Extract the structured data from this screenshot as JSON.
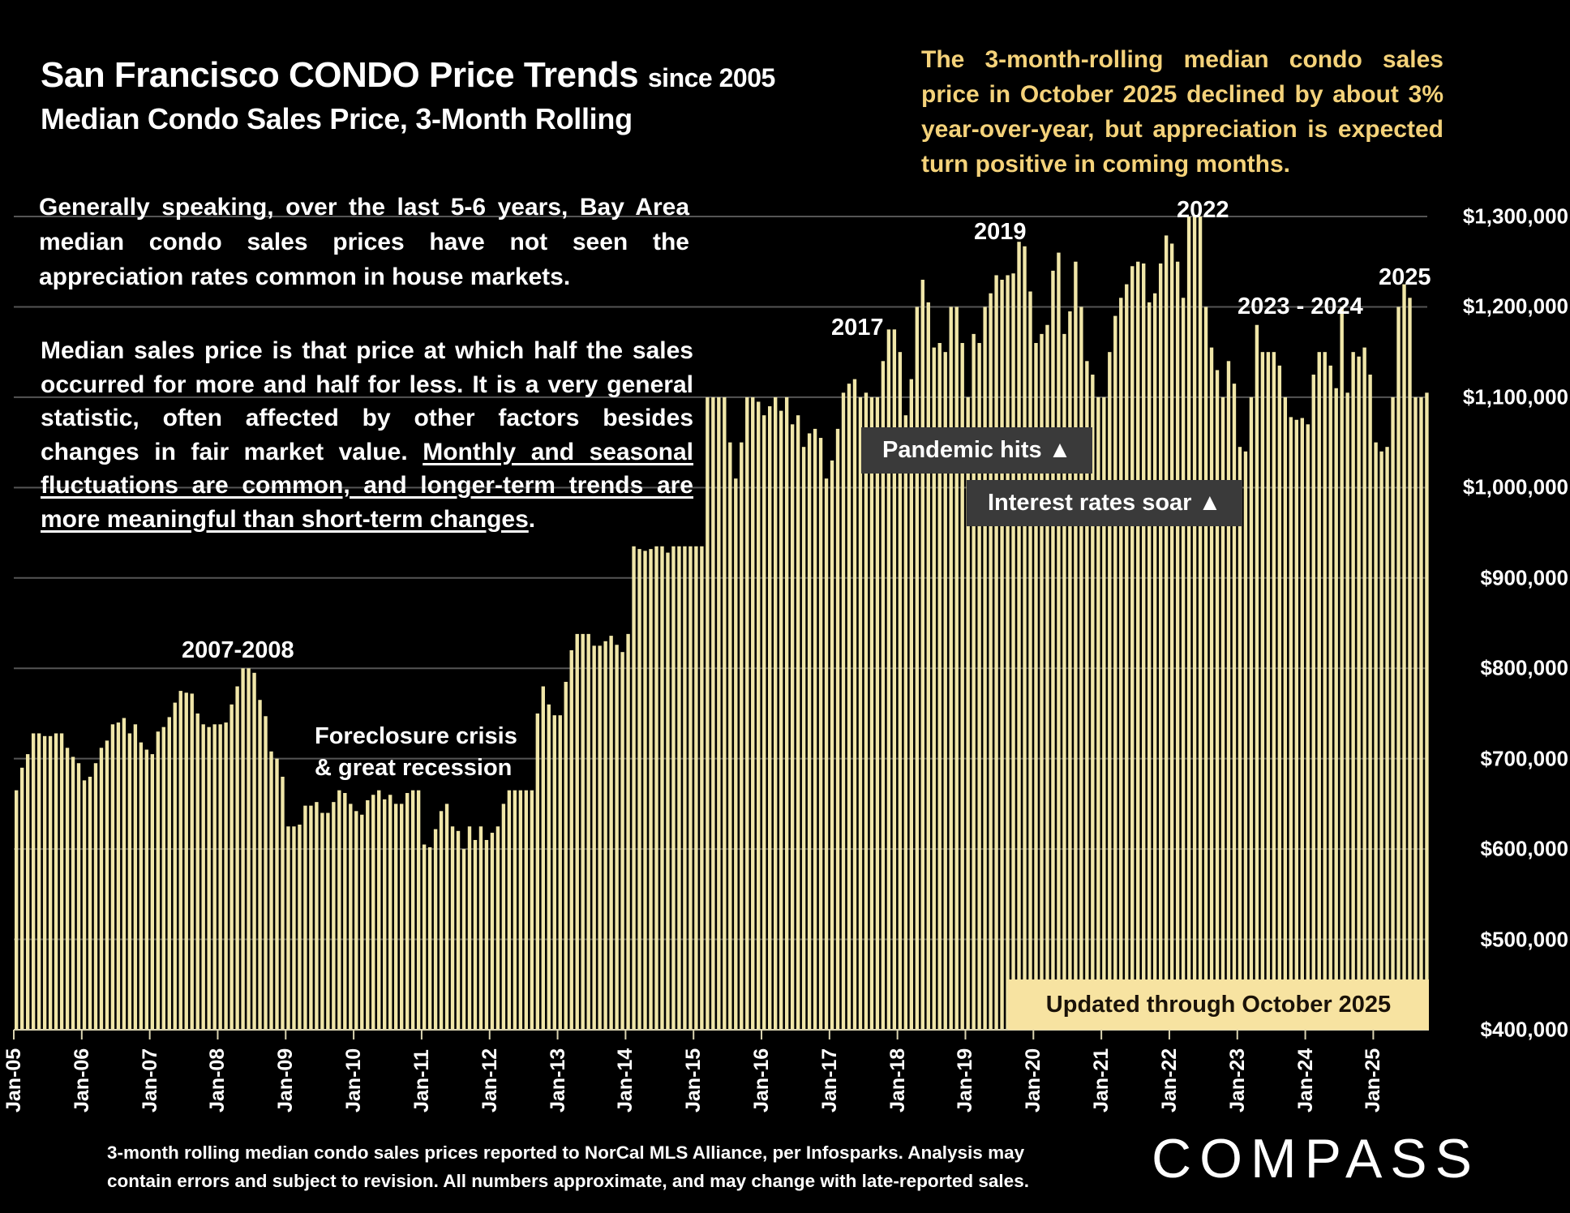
{
  "header": {
    "title": "San Francisco CONDO Price Trends",
    "title_suffix": "since 2005",
    "subtitle": "Median Condo Sales Price, 3-Month Rolling"
  },
  "callout": "The 3-month-rolling median condo sales price in October 2025 declined by about 3% year-over-year, but appreciation is expected turn positive in coming months.",
  "paragraph1": "Generally speaking, over the last 5-6 years, Bay Area median condo sales prices have not seen the appreciation rates common in house markets.",
  "paragraph2": {
    "plain": "Median sales price is that price at which half the sales occurred for more and half for less. It is a very general statistic, often affected by other factors besides changes in fair market value. ",
    "underlined": "Monthly and seasonal fluctuations are common, and longer-term trends are more meaningful than short-term changes",
    "end": "."
  },
  "annotations": {
    "a2007": "2007-2008",
    "foreclosure1": "Foreclosure crisis",
    "foreclosure2": "& great recession",
    "a2017": "2017",
    "a2019": "2019",
    "a2022": "2022",
    "a2023": "2023 - 2024",
    "a2025": "2025",
    "pandemic": "Pandemic hits ▲",
    "rates": "Interest rates soar ▲",
    "updated": "Updated through October 2025"
  },
  "footnote": {
    "line1": "3-month rolling median condo sales prices reported to NorCal MLS Alliance, per Infosparks. Analysis may",
    "line2": "contain errors and subject to revision. All numbers approximate, and may change with late-reported sales."
  },
  "logo": "COMPASS",
  "colors": {
    "bar": "#f0e6a8",
    "bar_edge": "#c9bd7c",
    "grid": "#555555",
    "callout": "#f4d27a",
    "updated_bg": "#f7e3a1"
  },
  "chart_data": {
    "type": "bar",
    "title": "San Francisco CONDO Price Trends since 2005",
    "subtitle": "Median Condo Sales Price, 3-Month Rolling",
    "xlabel": "",
    "ylabel": "",
    "ylim": [
      400000,
      1300000
    ],
    "grid": true,
    "yticks": [
      "$400,000",
      "$500,000",
      "$600,000",
      "$700,000",
      "$800,000",
      "$900,000",
      "$1,000,000",
      "$1,100,000",
      "$1,200,000",
      "$1,300,000"
    ],
    "ytick_values": [
      400000,
      500000,
      600000,
      700000,
      800000,
      900000,
      1000000,
      1100000,
      1200000,
      1300000
    ],
    "xticks": [
      "Jan-05",
      "Jan-06",
      "Jan-07",
      "Jan-08",
      "Jan-09",
      "Jan-10",
      "Jan-11",
      "Jan-12",
      "Jan-13",
      "Jan-14",
      "Jan-15",
      "Jan-16",
      "Jan-17",
      "Jan-18",
      "Jan-19",
      "Jan-20",
      "Jan-21",
      "Jan-22",
      "Jan-23",
      "Jan-24",
      "Jan-25"
    ],
    "start_month": "Jan-05",
    "end_month": "Oct-25",
    "values_thousands": [
      665,
      690,
      705,
      728,
      728,
      725,
      725,
      728,
      728,
      712,
      702,
      695,
      676,
      680,
      695,
      712,
      720,
      738,
      740,
      745,
      728,
      738,
      718,
      710,
      705,
      730,
      735,
      746,
      762,
      775,
      773,
      772,
      750,
      738,
      735,
      738,
      738,
      740,
      760,
      780,
      800,
      800,
      795,
      765,
      747,
      708,
      700,
      680,
      625,
      625,
      627,
      648,
      648,
      652,
      640,
      640,
      652,
      665,
      662,
      650,
      642,
      638,
      654,
      660,
      665,
      655,
      660,
      650,
      650,
      662,
      665,
      665,
      605,
      602,
      622,
      642,
      650,
      625,
      620,
      600,
      625,
      610,
      625,
      610,
      618,
      625,
      650,
      665,
      665,
      665,
      665,
      665,
      750,
      780,
      760,
      748,
      748,
      785,
      820,
      838,
      838,
      838,
      825,
      825,
      830,
      836,
      826,
      818,
      838,
      935,
      932,
      930,
      932,
      935,
      935,
      928,
      935,
      935,
      935,
      935,
      935,
      935,
      1100,
      1100,
      1100,
      1100,
      1050,
      1010,
      1050,
      1100,
      1100,
      1095,
      1080,
      1090,
      1100,
      1085,
      1100,
      1070,
      1080,
      1045,
      1060,
      1065,
      1055,
      1010,
      1030,
      1065,
      1105,
      1115,
      1120,
      1100,
      1105,
      1100,
      1100,
      1140,
      1175,
      1175,
      1150,
      1080,
      1120,
      1200,
      1230,
      1205,
      1155,
      1160,
      1150,
      1200,
      1200,
      1160,
      1100,
      1170,
      1160,
      1200,
      1215,
      1235,
      1230,
      1235,
      1237,
      1272,
      1267,
      1217,
      1160,
      1170,
      1180,
      1240,
      1260,
      1170,
      1195,
      1250,
      1200,
      1140,
      1125,
      1100,
      1100,
      1150,
      1190,
      1210,
      1225,
      1245,
      1250,
      1248,
      1205,
      1215,
      1248,
      1279,
      1270,
      1250,
      1210,
      1300,
      1300,
      1300,
      1200,
      1155,
      1130,
      1100,
      1140,
      1115,
      1045,
      1040,
      1100,
      1180,
      1150,
      1150,
      1150,
      1135,
      1100,
      1078,
      1075,
      1077,
      1070,
      1125,
      1150,
      1150,
      1135,
      1110,
      1200,
      1105,
      1150,
      1145,
      1155,
      1125,
      1050,
      1040,
      1045,
      1100,
      1200,
      1225,
      1210,
      1100,
      1100,
      1105
    ]
  }
}
